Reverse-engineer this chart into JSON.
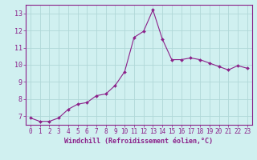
{
  "x": [
    0,
    1,
    2,
    3,
    4,
    5,
    6,
    7,
    8,
    9,
    10,
    11,
    12,
    13,
    14,
    15,
    16,
    17,
    18,
    19,
    20,
    21,
    22,
    23
  ],
  "y": [
    6.9,
    6.7,
    6.7,
    6.9,
    7.4,
    7.7,
    7.8,
    8.2,
    8.3,
    8.8,
    9.6,
    11.6,
    11.95,
    13.2,
    11.5,
    10.3,
    10.3,
    10.4,
    10.3,
    10.1,
    9.9,
    9.7,
    9.95,
    9.8
  ],
  "line_color": "#8b2089",
  "marker_color": "#8b2089",
  "bg_color": "#d0f0f0",
  "grid_color": "#b0d8d8",
  "xlabel": "Windchill (Refroidissement éolien,°C)",
  "xlabel_color": "#8b2089",
  "tick_color": "#8b2089",
  "spine_color": "#8b2089",
  "ylim": [
    6.5,
    13.5
  ],
  "xlim": [
    -0.5,
    23.5
  ],
  "yticks": [
    7,
    8,
    9,
    10,
    11,
    12,
    13
  ],
  "xticks": [
    0,
    1,
    2,
    3,
    4,
    5,
    6,
    7,
    8,
    9,
    10,
    11,
    12,
    13,
    14,
    15,
    16,
    17,
    18,
    19,
    20,
    21,
    22,
    23
  ],
  "tick_fontsize": 5.5,
  "xlabel_fontsize": 6.0
}
